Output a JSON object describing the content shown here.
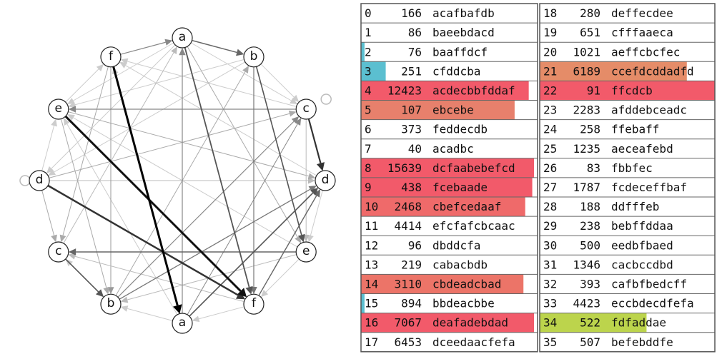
{
  "nodes": [
    {
      "label": "a"
    },
    {
      "label": "b"
    },
    {
      "label": "c"
    },
    {
      "label": "d"
    },
    {
      "label": "e"
    },
    {
      "label": "f"
    },
    {
      "label": "a"
    },
    {
      "label": "b"
    },
    {
      "label": "c"
    },
    {
      "label": "d"
    },
    {
      "label": "e"
    },
    {
      "label": "f"
    }
  ],
  "tables": [
    {
      "rows": [
        {
          "id": 0,
          "count": 166,
          "text": "acafbafdb"
        },
        {
          "id": 1,
          "count": 86,
          "text": "baeebdacd"
        },
        {
          "id": 2,
          "count": 76,
          "text": "baaffdcf",
          "bar": {
            "color": "#5bbfd0",
            "fraction": 0.02
          }
        },
        {
          "id": 3,
          "count": 251,
          "text": "cfddcba",
          "bar": {
            "color": "#5bbfd0",
            "fraction": 0.14
          }
        },
        {
          "id": 4,
          "count": 12423,
          "text": "acdecbbfddaf",
          "bar": {
            "color": "#f25a6a",
            "fraction": 0.95
          }
        },
        {
          "id": 5,
          "count": 107,
          "text": "ebcebe",
          "bar": {
            "color": "#e7806c",
            "fraction": 0.87
          }
        },
        {
          "id": 6,
          "count": 373,
          "text": "feddecdb"
        },
        {
          "id": 7,
          "count": 40,
          "text": "acadbc"
        },
        {
          "id": 8,
          "count": 15639,
          "text": "dcfaabebefcd",
          "bar": {
            "color": "#f25a6a",
            "fraction": 0.98
          }
        },
        {
          "id": 9,
          "count": 438,
          "text": "fcebaade",
          "bar": {
            "color": "#f25a6a",
            "fraction": 0.97
          }
        },
        {
          "id": 10,
          "count": 2468,
          "text": "cbefcedaaf",
          "bar": {
            "color": "#ef6a6a",
            "fraction": 0.93
          }
        },
        {
          "id": 11,
          "count": 4414,
          "text": "efcfafcbcaac"
        },
        {
          "id": 12,
          "count": 96,
          "text": "dbddcfa"
        },
        {
          "id": 13,
          "count": 219,
          "text": "cabacbdb"
        },
        {
          "id": 14,
          "count": 3110,
          "text": "cbdeadcbad",
          "bar": {
            "color": "#ec7468",
            "fraction": 0.92
          }
        },
        {
          "id": 15,
          "count": 894,
          "text": "bbdeacbbe",
          "bar": {
            "color": "#5bbfd0",
            "fraction": 0.02
          }
        },
        {
          "id": 16,
          "count": 7067,
          "text": "deafadebdad",
          "bar": {
            "color": "#f25a6a",
            "fraction": 0.98
          }
        },
        {
          "id": 17,
          "count": 6453,
          "text": "dceedaacfefa"
        }
      ]
    },
    {
      "rows": [
        {
          "id": 18,
          "count": 280,
          "text": "deffecdee"
        },
        {
          "id": 19,
          "count": 651,
          "text": "cfffaaeca"
        },
        {
          "id": 20,
          "count": 1021,
          "text": "aeffcbcfec"
        },
        {
          "id": 21,
          "count": 6189,
          "text": "ccefdcddadfd",
          "bar": {
            "color": "#e58c68",
            "fraction": 0.84
          }
        },
        {
          "id": 22,
          "count": 91,
          "text": "ffcdcb",
          "bar": {
            "color": "#f25a6a",
            "fraction": 1.0
          }
        },
        {
          "id": 23,
          "count": 2283,
          "text": "afddebceadc"
        },
        {
          "id": 24,
          "count": 258,
          "text": "ffebaff"
        },
        {
          "id": 25,
          "count": 1235,
          "text": "aeceafebd"
        },
        {
          "id": 26,
          "count": 83,
          "text": "fbbfec"
        },
        {
          "id": 27,
          "count": 1787,
          "text": "fcdeceffbaf"
        },
        {
          "id": 28,
          "count": 188,
          "text": "ddfffeb"
        },
        {
          "id": 29,
          "count": 238,
          "text": "bebffddaa"
        },
        {
          "id": 30,
          "count": 500,
          "text": "eedbfbaed"
        },
        {
          "id": 31,
          "count": 1346,
          "text": "cacbccdbd"
        },
        {
          "id": 32,
          "count": 393,
          "text": "cafbfbedcff"
        },
        {
          "id": 33,
          "count": 4423,
          "text": "eccbdecdfefa"
        },
        {
          "id": 34,
          "count": 522,
          "text": "fdfaddae",
          "bar": {
            "color": "#bcd44c",
            "fraction": 0.61
          }
        },
        {
          "id": 35,
          "count": 507,
          "text": "befebddfe"
        }
      ]
    }
  ]
}
